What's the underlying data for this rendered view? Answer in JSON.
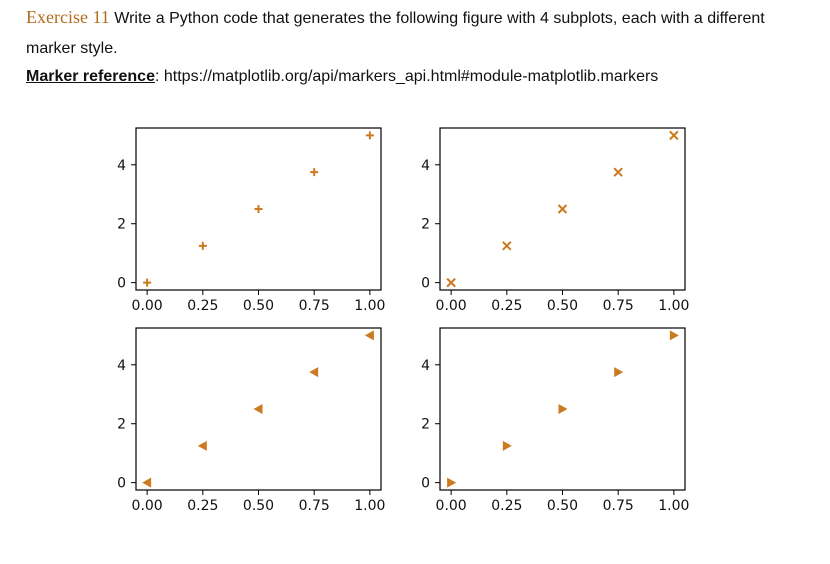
{
  "header": {
    "exercise_label": "Exercise 11",
    "instruction": "Write a Python code that generates the following figure with 4 subplots, each with a different marker style.",
    "reference_label": "Marker reference",
    "reference_separator": ":",
    "reference_url": "https://matplotlib.org/api/markers_api.html#module-matplotlib.markers"
  },
  "chart_data": [
    {
      "type": "scatter",
      "marker": "+",
      "color": "#cc7a1f",
      "x": [
        0,
        0.25,
        0.5,
        0.75,
        1.0
      ],
      "y": [
        0,
        1.25,
        2.5,
        3.75,
        5.0
      ],
      "xticks": [
        "0.00",
        "0.25",
        "0.50",
        "0.75",
        "1.00"
      ],
      "yticks": [
        "0",
        "2",
        "4"
      ],
      "xlim": [
        -0.05,
        1.05
      ],
      "ylim": [
        -0.25,
        5.25
      ]
    },
    {
      "type": "scatter",
      "marker": "x",
      "color": "#cc7a1f",
      "x": [
        0,
        0.25,
        0.5,
        0.75,
        1.0
      ],
      "y": [
        0,
        1.25,
        2.5,
        3.75,
        5.0
      ],
      "xticks": [
        "0.00",
        "0.25",
        "0.50",
        "0.75",
        "1.00"
      ],
      "yticks": [
        "0",
        "2",
        "4"
      ],
      "xlim": [
        -0.05,
        1.05
      ],
      "ylim": [
        -0.25,
        5.25
      ]
    },
    {
      "type": "scatter",
      "marker": "<",
      "color": "#cc7a1f",
      "x": [
        0,
        0.25,
        0.5,
        0.75,
        1.0
      ],
      "y": [
        0,
        1.25,
        2.5,
        3.75,
        5.0
      ],
      "xticks": [
        "0.00",
        "0.25",
        "0.50",
        "0.75",
        "1.00"
      ],
      "yticks": [
        "0",
        "2",
        "4"
      ],
      "xlim": [
        -0.05,
        1.05
      ],
      "ylim": [
        -0.25,
        5.25
      ]
    },
    {
      "type": "scatter",
      "marker": ">",
      "color": "#cc7a1f",
      "x": [
        0,
        0.25,
        0.5,
        0.75,
        1.0
      ],
      "y": [
        0,
        1.25,
        2.5,
        3.75,
        5.0
      ],
      "xticks": [
        "0.00",
        "0.25",
        "0.50",
        "0.75",
        "1.00"
      ],
      "yticks": [
        "0",
        "2",
        "4"
      ],
      "xlim": [
        -0.05,
        1.05
      ],
      "ylim": [
        -0.25,
        5.25
      ]
    }
  ]
}
